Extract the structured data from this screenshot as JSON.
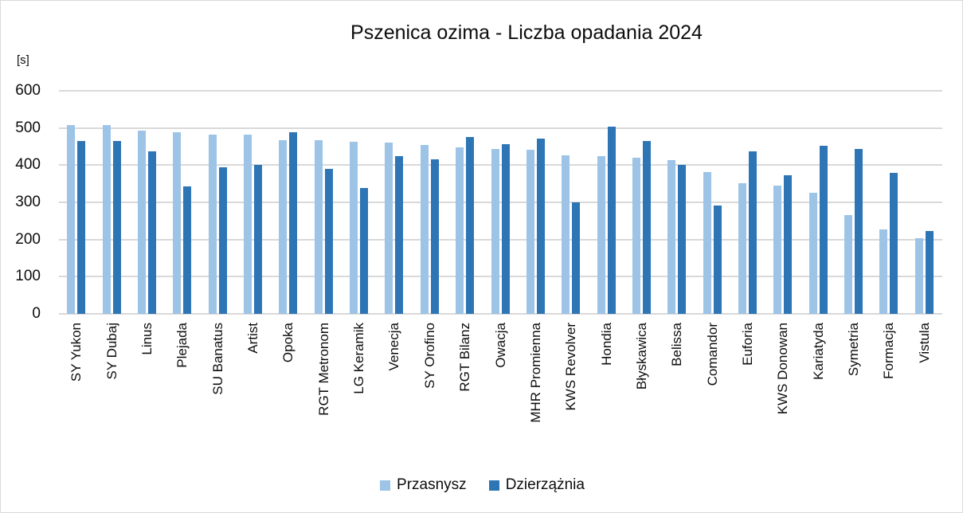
{
  "chart_data": {
    "type": "bar",
    "title": "Pszenica ozima - Liczba opadania 2024",
    "xlabel": "",
    "ylabel": "[s]",
    "ylim": [
      0,
      600
    ],
    "yticks": [
      0,
      100,
      200,
      300,
      400,
      500,
      600
    ],
    "grid": true,
    "legend_position": "bottom",
    "categories": [
      "SY Yukon",
      "SY Dubaj",
      "Linus",
      "Plejada",
      "SU Banatus",
      "Artist",
      "Opoka",
      "RGT Metronom",
      "LG Keramik",
      "Venecja",
      "SY Orofino",
      "RGT Bilanz",
      "Owacja",
      "MHR Promienna",
      "KWS Revolver",
      "Hondia",
      "Błyskawica",
      "Belissa",
      "Comandor",
      "Euforia",
      "KWS Donowan",
      "Kariatyda",
      "Symetria",
      "Formacja",
      "Vistula"
    ],
    "series": [
      {
        "name": "Przasnysz",
        "color": "#9dc3e6",
        "values": [
          507,
          507,
          493,
          488,
          483,
          483,
          467,
          467,
          463,
          460,
          454,
          448,
          443,
          441,
          426,
          424,
          420,
          414,
          381,
          352,
          345,
          326,
          266,
          228,
          204
        ]
      },
      {
        "name": "Dzierzążnia",
        "color": "#2e75b6",
        "values": [
          465,
          465,
          437,
          343,
          394,
          401,
          488,
          390,
          339,
          424,
          416,
          475,
          456,
          471,
          300,
          503,
          465,
          401,
          292,
          437,
          373,
          452,
          443,
          379,
          223
        ]
      }
    ]
  }
}
